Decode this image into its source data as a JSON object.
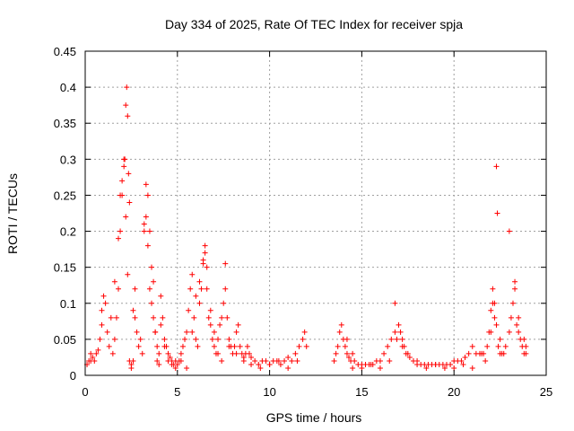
{
  "chart_data": {
    "type": "scatter",
    "title": "Day 334 of 2025, Rate Of TEC Index for receiver spja",
    "xlabel": "GPS time / hours",
    "ylabel": "ROTI / TECUs",
    "xlim": [
      0,
      25
    ],
    "ylim": [
      0,
      0.45
    ],
    "xticks": [
      0,
      5,
      10,
      15,
      20,
      25
    ],
    "yticks": [
      0,
      0.05,
      0.1,
      0.15,
      0.2,
      0.25,
      0.3,
      0.35,
      0.4,
      0.45
    ],
    "grid": true,
    "marker": "plus",
    "marker_color": "#ff0000",
    "series": [
      {
        "x": [
          0.1,
          0.2,
          0.3,
          0.4,
          0.5,
          0.6,
          0.7,
          0.8,
          0.9,
          1.0,
          1.1,
          1.2,
          1.3,
          1.4,
          1.5,
          1.6,
          1.7,
          1.8,
          1.9,
          2.0,
          2.1,
          2.2,
          2.3,
          2.4,
          2.5,
          2.6,
          2.7,
          2.8,
          2.9,
          3.0,
          3.1,
          3.2,
          3.3,
          3.4,
          3.5,
          3.6,
          3.7,
          3.8,
          3.9,
          4.0,
          4.1,
          4.2,
          4.3,
          4.4,
          4.5,
          4.6,
          4.7,
          4.8,
          4.9,
          5.0,
          5.1,
          5.2,
          5.3,
          5.4,
          5.5,
          5.6,
          5.7,
          5.8,
          5.9,
          6.0,
          6.1,
          6.2,
          6.3,
          6.4,
          6.5,
          6.6,
          6.7,
          6.8,
          6.9,
          7.0,
          7.1,
          7.2,
          7.3,
          7.4,
          7.5,
          7.6,
          7.7,
          7.8,
          7.9,
          8.0,
          8.1,
          8.2,
          8.3,
          8.4,
          8.5,
          8.6,
          8.7,
          8.8,
          8.9,
          9.0,
          9.2,
          9.4,
          9.6,
          9.8,
          10.0,
          10.2,
          10.4,
          10.6,
          10.8,
          11.0,
          11.2,
          11.4,
          11.6,
          11.8,
          11.9,
          13.6,
          13.7,
          13.8,
          13.9,
          14.0,
          14.1,
          14.2,
          14.3,
          14.4,
          14.5,
          14.6,
          14.8,
          15.0,
          15.2,
          15.4,
          15.6,
          15.8,
          16.0,
          16.2,
          16.4,
          16.6,
          16.8,
          16.9,
          17.0,
          17.1,
          17.2,
          17.3,
          17.4,
          17.6,
          17.8,
          18.0,
          18.2,
          18.4,
          18.6,
          18.8,
          19.0,
          19.2,
          19.4,
          19.6,
          19.8,
          20.0,
          20.2,
          20.4,
          20.6,
          20.8,
          21.0,
          21.2,
          21.4,
          21.6,
          21.8,
          21.9,
          22.0,
          22.1,
          22.2,
          22.3,
          22.4,
          22.5,
          22.6,
          22.8,
          23.0,
          23.1,
          23.2,
          23.3,
          23.4,
          23.5,
          23.6,
          23.7,
          23.8,
          23.9
        ],
        "y": [
          0.015,
          0.02,
          0.03,
          0.025,
          0.02,
          0.03,
          0.035,
          0.05,
          0.07,
          0.11,
          0.1,
          0.06,
          0.04,
          0.08,
          0.03,
          0.05,
          0.08,
          0.12,
          0.2,
          0.25,
          0.3,
          0.22,
          0.14,
          0.02,
          0.015,
          0.09,
          0.08,
          0.06,
          0.04,
          0.05,
          0.03,
          0.2,
          0.22,
          0.18,
          0.12,
          0.1,
          0.08,
          0.06,
          0.04,
          0.03,
          0.11,
          0.08,
          0.05,
          0.04,
          0.03,
          0.025,
          0.02,
          0.015,
          0.02,
          0.015,
          0.02,
          0.03,
          0.04,
          0.05,
          0.06,
          0.09,
          0.12,
          0.14,
          0.08,
          0.05,
          0.04,
          0.1,
          0.12,
          0.16,
          0.17,
          0.15,
          0.08,
          0.07,
          0.05,
          0.04,
          0.03,
          0.05,
          0.07,
          0.08,
          0.1,
          0.12,
          0.08,
          0.05,
          0.04,
          0.03,
          0.04,
          0.06,
          0.07,
          0.04,
          0.03,
          0.025,
          0.03,
          0.04,
          0.03,
          0.025,
          0.02,
          0.015,
          0.02,
          0.02,
          0.015,
          0.02,
          0.02,
          0.015,
          0.02,
          0.025,
          0.02,
          0.03,
          0.04,
          0.05,
          0.06,
          0.03,
          0.04,
          0.06,
          0.07,
          0.05,
          0.04,
          0.03,
          0.025,
          0.02,
          0.03,
          0.02,
          0.015,
          0.015,
          0.015,
          0.015,
          0.015,
          0.02,
          0.02,
          0.03,
          0.04,
          0.05,
          0.06,
          0.05,
          0.07,
          0.06,
          0.05,
          0.04,
          0.03,
          0.025,
          0.02,
          0.02,
          0.015,
          0.015,
          0.015,
          0.015,
          0.015,
          0.015,
          0.015,
          0.015,
          0.015,
          0.02,
          0.02,
          0.02,
          0.025,
          0.03,
          0.04,
          0.03,
          0.03,
          0.03,
          0.04,
          0.06,
          0.09,
          0.12,
          0.1,
          0.07,
          0.04,
          0.03,
          0.03,
          0.04,
          0.06,
          0.08,
          0.1,
          0.12,
          0.07,
          0.06,
          0.05,
          0.04,
          0.03,
          0.03
        ]
      },
      {
        "x": [
          0.3,
          0.9,
          1.6,
          1.8,
          1.9,
          2.0,
          2.1,
          2.15,
          2.2,
          2.25,
          2.3,
          2.35,
          2.4,
          2.5,
          2.6,
          2.7,
          3.2,
          3.3,
          3.4,
          3.5,
          3.6,
          3.7,
          3.8,
          3.9,
          4.0,
          4.1,
          4.3,
          4.5,
          4.7,
          4.9,
          5.2,
          5.5,
          5.8,
          6.0,
          6.2,
          6.4,
          6.5,
          6.6,
          6.8,
          7.0,
          7.2,
          7.4,
          7.6,
          7.8,
          8.2,
          8.6,
          9.0,
          9.5,
          10.0,
          10.5,
          11.0,
          11.5,
          12.0,
          13.5,
          14.2,
          14.5,
          15.0,
          15.5,
          16.0,
          16.5,
          16.8,
          17.2,
          17.5,
          18.0,
          18.5,
          19.0,
          19.5,
          20.0,
          20.5,
          21.0,
          21.5,
          21.7,
          22.0,
          22.1,
          22.2,
          22.3,
          22.35,
          22.5,
          22.7,
          23.0,
          23.3,
          23.5,
          23.8,
          23.9
        ],
        "y": [
          0.02,
          0.09,
          0.13,
          0.19,
          0.25,
          0.27,
          0.29,
          0.3,
          0.375,
          0.4,
          0.36,
          0.28,
          0.24,
          0.01,
          0.02,
          0.12,
          0.21,
          0.265,
          0.25,
          0.2,
          0.15,
          0.13,
          0.06,
          0.02,
          0.015,
          0.07,
          0.04,
          0.02,
          0.015,
          0.01,
          0.02,
          0.01,
          0.06,
          0.11,
          0.13,
          0.155,
          0.18,
          0.12,
          0.09,
          0.06,
          0.03,
          0.02,
          0.155,
          0.04,
          0.03,
          0.02,
          0.015,
          0.01,
          0.015,
          0.02,
          0.01,
          0.02,
          0.04,
          0.02,
          0.05,
          0.01,
          0.01,
          0.015,
          0.01,
          0.02,
          0.1,
          0.04,
          0.03,
          0.015,
          0.01,
          0.015,
          0.01,
          0.01,
          0.015,
          0.01,
          0.03,
          0.02,
          0.06,
          0.1,
          0.08,
          0.29,
          0.225,
          0.05,
          0.03,
          0.2,
          0.13,
          0.08,
          0.05,
          0.04
        ]
      }
    ]
  }
}
